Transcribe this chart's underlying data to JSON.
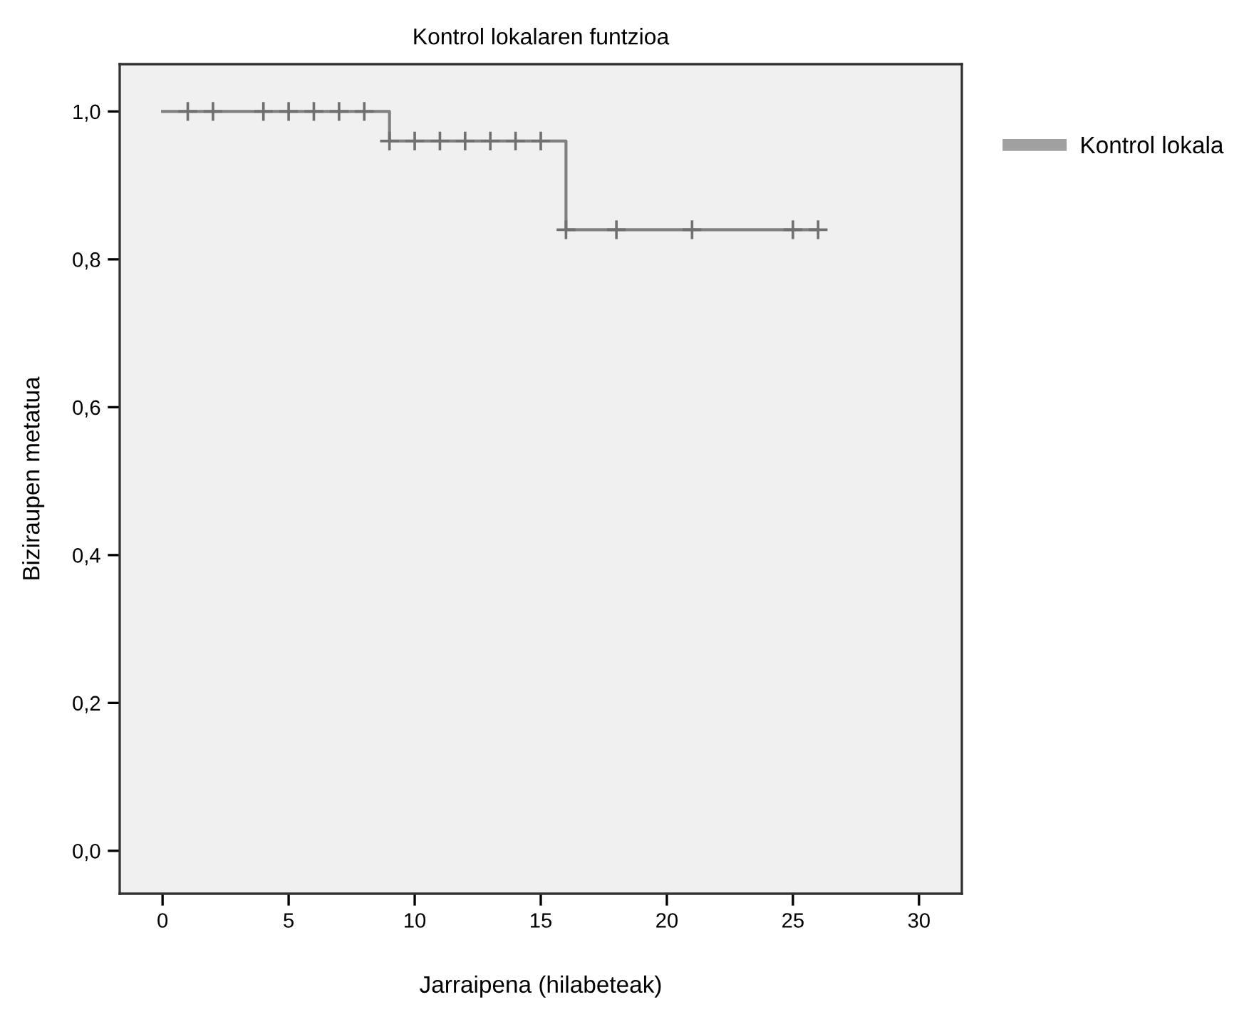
{
  "chart_data": {
    "type": "step",
    "title": "Kontrol lokalaren funtzioa",
    "xlabel": "Jarraipena (hilabeteak)",
    "ylabel": "Biziraupen metatua",
    "series": [
      {
        "name": "Kontrol lokala",
        "color": "#808080",
        "x": [
          0,
          9,
          16,
          26
        ],
        "values": [
          1.0,
          0.96,
          0.84,
          0.84
        ],
        "marker": "none"
      },
      {
        "type": "scatter",
        "color": "#707070",
        "marker": "cross",
        "x": [
          1,
          2,
          4,
          5,
          6,
          7,
          8,
          9,
          10,
          11,
          12,
          13,
          14,
          15,
          16,
          18,
          21,
          25,
          26
        ],
        "values": [
          1.0,
          1.0,
          1.0,
          1.0,
          1.0,
          1.0,
          1.0,
          0.96,
          0.96,
          0.96,
          0.96,
          0.96,
          0.96,
          0.96,
          0.84,
          0.84,
          0.84,
          0.84,
          0.84
        ]
      }
    ],
    "xlim": [
      -1.7,
      31.7
    ],
    "xticks": [
      0,
      5,
      10,
      15,
      20,
      25,
      30
    ],
    "ylim": [
      -0.058,
      1.064
    ],
    "yticks": [
      {
        "value": 0,
        "label": "0,0"
      },
      {
        "value": 0.2,
        "label": "0,2"
      },
      {
        "value": 0.4,
        "label": "0,4"
      },
      {
        "value": 0.6,
        "label": "0,6"
      },
      {
        "value": 0.8,
        "label": "0,8"
      },
      {
        "value": 1.0,
        "label": "1,0"
      }
    ],
    "grid": false,
    "legend": "right"
  }
}
